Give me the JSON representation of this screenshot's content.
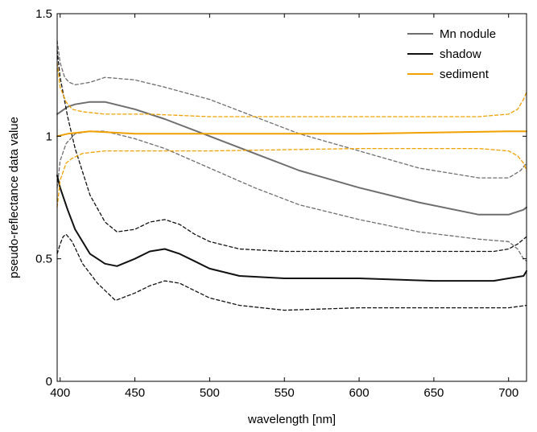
{
  "chart_data": {
    "type": "line",
    "xlabel": "wavelength [nm]",
    "ylabel": "pseudo-reflectance data value",
    "xlim": [
      398,
      712
    ],
    "ylim": [
      0,
      1.5
    ],
    "xticks": [
      400,
      450,
      500,
      550,
      600,
      650,
      700
    ],
    "yticks": [
      0,
      0.5,
      1,
      1.5
    ],
    "ytick_labels": [
      "0",
      "0.5",
      "1",
      "1.5"
    ],
    "grid": false,
    "legend_position": "top-right",
    "series": [
      {
        "name": "Mn nodule",
        "color": "#6e6e6e",
        "style": "solid",
        "x": [
          398,
          405,
          410,
          420,
          430,
          450,
          470,
          500,
          530,
          560,
          600,
          640,
          680,
          700,
          710,
          712
        ],
        "values": [
          1.09,
          1.12,
          1.13,
          1.14,
          1.14,
          1.11,
          1.07,
          1.0,
          0.93,
          0.86,
          0.79,
          0.73,
          0.68,
          0.68,
          0.7,
          0.71
        ]
      },
      {
        "name": "",
        "color": "#6e6e6e",
        "style": "dashed",
        "x": [
          398,
          400,
          403,
          406,
          410,
          420,
          430,
          450,
          470,
          500,
          530,
          560,
          600,
          640,
          680,
          700,
          708,
          712
        ],
        "values": [
          1.39,
          1.3,
          1.24,
          1.22,
          1.21,
          1.22,
          1.24,
          1.23,
          1.2,
          1.15,
          1.08,
          1.01,
          0.94,
          0.87,
          0.83,
          0.83,
          0.86,
          0.89
        ]
      },
      {
        "name": "",
        "color": "#6e6e6e",
        "style": "dashed",
        "x": [
          398,
          400,
          404,
          410,
          420,
          430,
          450,
          470,
          500,
          530,
          560,
          600,
          640,
          680,
          700,
          706,
          710,
          712
        ],
        "values": [
          0.79,
          0.9,
          0.97,
          1.01,
          1.02,
          1.02,
          0.99,
          0.95,
          0.87,
          0.79,
          0.72,
          0.66,
          0.61,
          0.58,
          0.57,
          0.54,
          0.5,
          0.49
        ]
      },
      {
        "name": "shadow",
        "color": "#111111",
        "style": "solid",
        "x": [
          398,
          400,
          405,
          410,
          420,
          430,
          438,
          450,
          460,
          470,
          480,
          490,
          500,
          520,
          550,
          600,
          650,
          690,
          700,
          710,
          712
        ],
        "values": [
          0.84,
          0.79,
          0.7,
          0.62,
          0.52,
          0.48,
          0.47,
          0.5,
          0.53,
          0.54,
          0.52,
          0.49,
          0.46,
          0.43,
          0.42,
          0.42,
          0.41,
          0.41,
          0.42,
          0.43,
          0.45
        ]
      },
      {
        "name": "",
        "color": "#111111",
        "style": "dashed",
        "x": [
          398,
          400,
          405,
          410,
          420,
          430,
          438,
          450,
          460,
          470,
          480,
          490,
          500,
          520,
          550,
          600,
          650,
          690,
          700,
          706,
          710,
          712
        ],
        "values": [
          1.35,
          1.24,
          1.08,
          0.95,
          0.76,
          0.65,
          0.61,
          0.62,
          0.65,
          0.66,
          0.64,
          0.6,
          0.57,
          0.54,
          0.53,
          0.53,
          0.53,
          0.53,
          0.54,
          0.56,
          0.58,
          0.59
        ]
      },
      {
        "name": "",
        "color": "#111111",
        "style": "dashed",
        "x": [
          398,
          400,
          402,
          404,
          408,
          415,
          425,
          437,
          450,
          460,
          470,
          480,
          490,
          500,
          520,
          550,
          600,
          650,
          690,
          700,
          712
        ],
        "values": [
          0.52,
          0.56,
          0.59,
          0.6,
          0.57,
          0.48,
          0.4,
          0.33,
          0.36,
          0.39,
          0.41,
          0.4,
          0.37,
          0.34,
          0.31,
          0.29,
          0.3,
          0.3,
          0.3,
          0.3,
          0.31
        ]
      },
      {
        "name": "sediment",
        "color": "#f0a000",
        "style": "solid",
        "x": [
          398,
          405,
          420,
          450,
          500,
          600,
          700,
          712
        ],
        "values": [
          1.0,
          1.01,
          1.02,
          1.01,
          1.01,
          1.01,
          1.02,
          1.02
        ]
      },
      {
        "name": "",
        "color": "#f0a000",
        "style": "dashed",
        "x": [
          398,
          400,
          404,
          408,
          415,
          430,
          460,
          500,
          600,
          680,
          700,
          706,
          710,
          712
        ],
        "values": [
          1.3,
          1.2,
          1.14,
          1.11,
          1.1,
          1.09,
          1.09,
          1.08,
          1.08,
          1.08,
          1.09,
          1.11,
          1.15,
          1.18
        ]
      },
      {
        "name": "",
        "color": "#f0a000",
        "style": "dashed",
        "x": [
          398,
          400,
          404,
          408,
          415,
          430,
          460,
          500,
          600,
          680,
          700,
          706,
          710,
          712
        ],
        "values": [
          0.71,
          0.82,
          0.89,
          0.91,
          0.93,
          0.94,
          0.94,
          0.94,
          0.95,
          0.95,
          0.94,
          0.92,
          0.89,
          0.86
        ]
      }
    ]
  }
}
